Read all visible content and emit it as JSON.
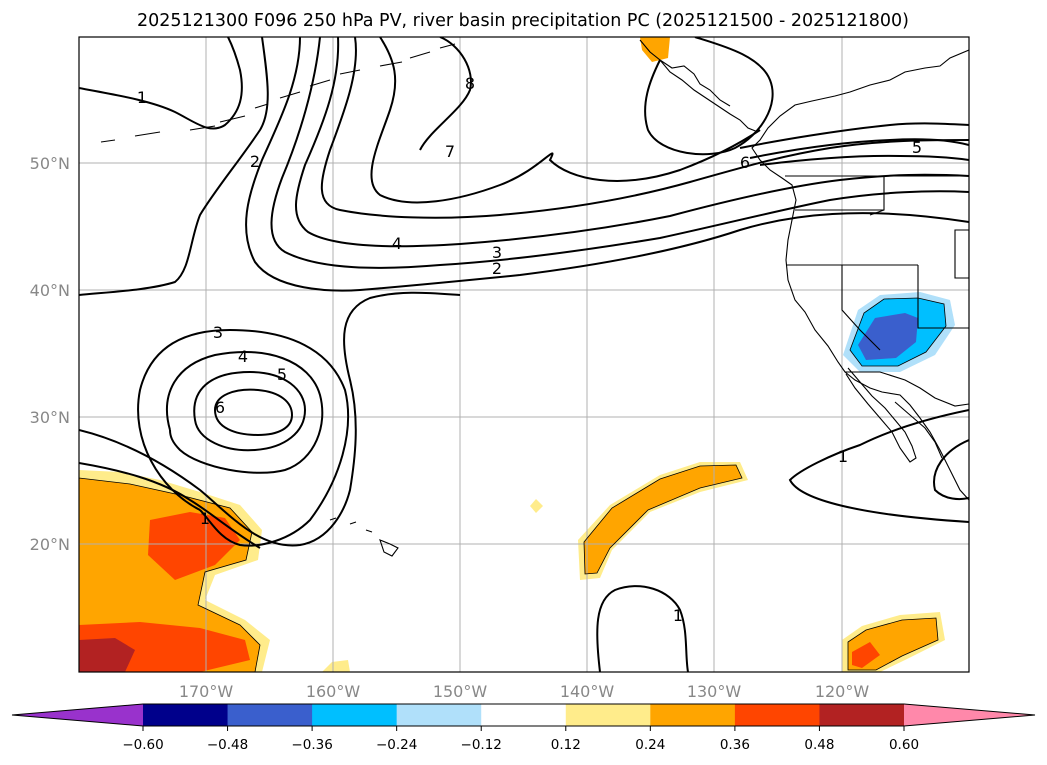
{
  "title": "2025121300 F096 250 hPa PV, river basin precipitation PC (2025121500 - 2025121800)",
  "map": {
    "lat_labels": [
      "50°N",
      "40°N",
      "30°N",
      "20°N"
    ],
    "lon_labels": [
      "170°W",
      "160°W",
      "150°W",
      "140°W",
      "130°W",
      "120°W"
    ],
    "extent": {
      "lon": [
        -180,
        -110
      ],
      "lat": [
        10,
        60
      ]
    },
    "contour_labels": [
      "1",
      "2",
      "7",
      "8",
      "4",
      "3",
      "2",
      "5",
      "6",
      "3",
      "4",
      "5",
      "6",
      "1",
      "1",
      "1"
    ]
  },
  "colorbar": {
    "ticks": [
      "−0.60",
      "−0.48",
      "−0.36",
      "−0.24",
      "−0.12",
      "0.12",
      "0.24",
      "0.36",
      "0.48",
      "0.60"
    ],
    "colors": [
      "#9932cc",
      "#00008b",
      "#3a5fcd",
      "#00bfff",
      "#b0e0fa",
      "#ffffff",
      "#ffec8b",
      "#ffa500",
      "#ff4500",
      "#b22222",
      "#ff88aa"
    ]
  }
}
